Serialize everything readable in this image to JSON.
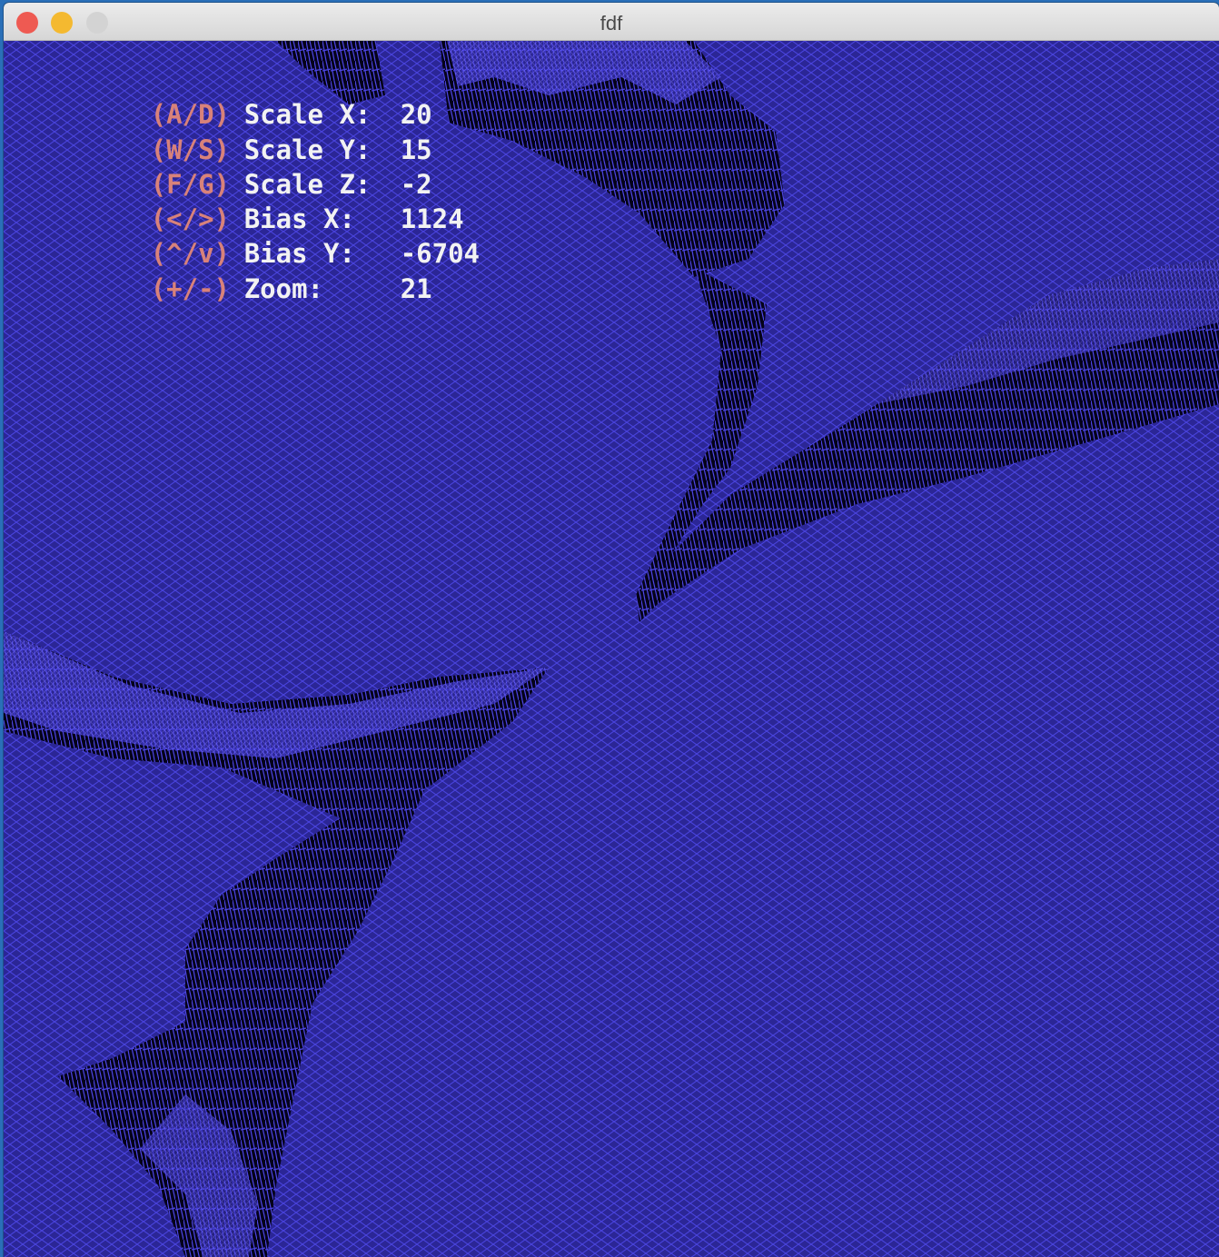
{
  "window": {
    "title": "fdf",
    "buttons": {
      "close_color": "#ee5a52",
      "minimize_color": "#f4b930",
      "zoom_color": "#d3d3d3"
    }
  },
  "colors": {
    "background": "#2b2696",
    "wire": "#4a44e0",
    "ridge_shadow": "#000000",
    "key_text": "#d8827a",
    "value_text": "#f2f2f2"
  },
  "hud": [
    {
      "keys": "(A/D)",
      "label": "Scale X:",
      "value": "20"
    },
    {
      "keys": "(W/S)",
      "label": "Scale Y:",
      "value": "15"
    },
    {
      "keys": "(F/G)",
      "label": "Scale Z:",
      "value": "-2"
    },
    {
      "keys": "(</>)",
      "label": "Bias X:",
      "value": "1124"
    },
    {
      "keys": "(^/v)",
      "label": "Bias Y:",
      "value": "-6704"
    },
    {
      "keys": "(+/-)",
      "label": "Zoom:",
      "value": "21"
    }
  ]
}
